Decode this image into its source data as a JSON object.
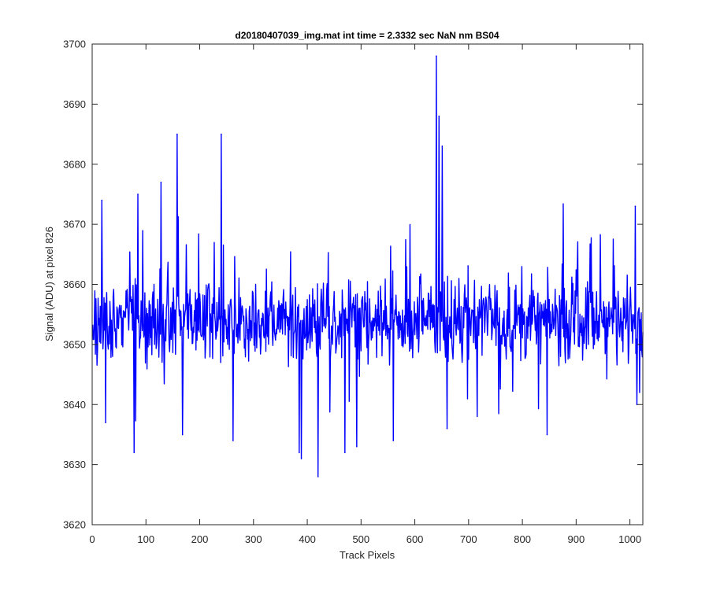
{
  "chart_data": {
    "type": "line",
    "title": "d20180407039_img.mat int time = 2.3332 sec  NaN nm BS04",
    "xlabel": "Track Pixels",
    "ylabel": "Signal (ADU) at pixel 826",
    "xlim": [
      0,
      1024
    ],
    "ylim": [
      3620,
      3700
    ],
    "xticks": [
      0,
      100,
      200,
      300,
      400,
      500,
      600,
      700,
      800,
      900,
      1000
    ],
    "yticks": [
      3620,
      3630,
      3640,
      3650,
      3660,
      3670,
      3680,
      3690,
      3700
    ],
    "grid": false,
    "box": true,
    "series": [
      {
        "color": "#0000ff",
        "sampling_note_x_start": 1,
        "sampling_note_x_end": 1024,
        "baseline_mean": 3654,
        "noise_amplitude": 6,
        "notable_points": [
          {
            "x": 18,
            "y": 3674
          },
          {
            "x": 25,
            "y": 3637
          },
          {
            "x": 78,
            "y": 3632
          },
          {
            "x": 85,
            "y": 3675
          },
          {
            "x": 128,
            "y": 3677
          },
          {
            "x": 158,
            "y": 3685
          },
          {
            "x": 168,
            "y": 3635
          },
          {
            "x": 240,
            "y": 3685
          },
          {
            "x": 262,
            "y": 3634
          },
          {
            "x": 385,
            "y": 3632
          },
          {
            "x": 389,
            "y": 3631
          },
          {
            "x": 420,
            "y": 3628
          },
          {
            "x": 470,
            "y": 3632
          },
          {
            "x": 492,
            "y": 3633
          },
          {
            "x": 560,
            "y": 3634
          },
          {
            "x": 640,
            "y": 3698
          },
          {
            "x": 645,
            "y": 3688
          },
          {
            "x": 651,
            "y": 3683
          },
          {
            "x": 660,
            "y": 3636
          },
          {
            "x": 846,
            "y": 3635
          },
          {
            "x": 1010,
            "y": 3673
          },
          {
            "x": 1013,
            "y": 3640
          }
        ]
      }
    ]
  }
}
